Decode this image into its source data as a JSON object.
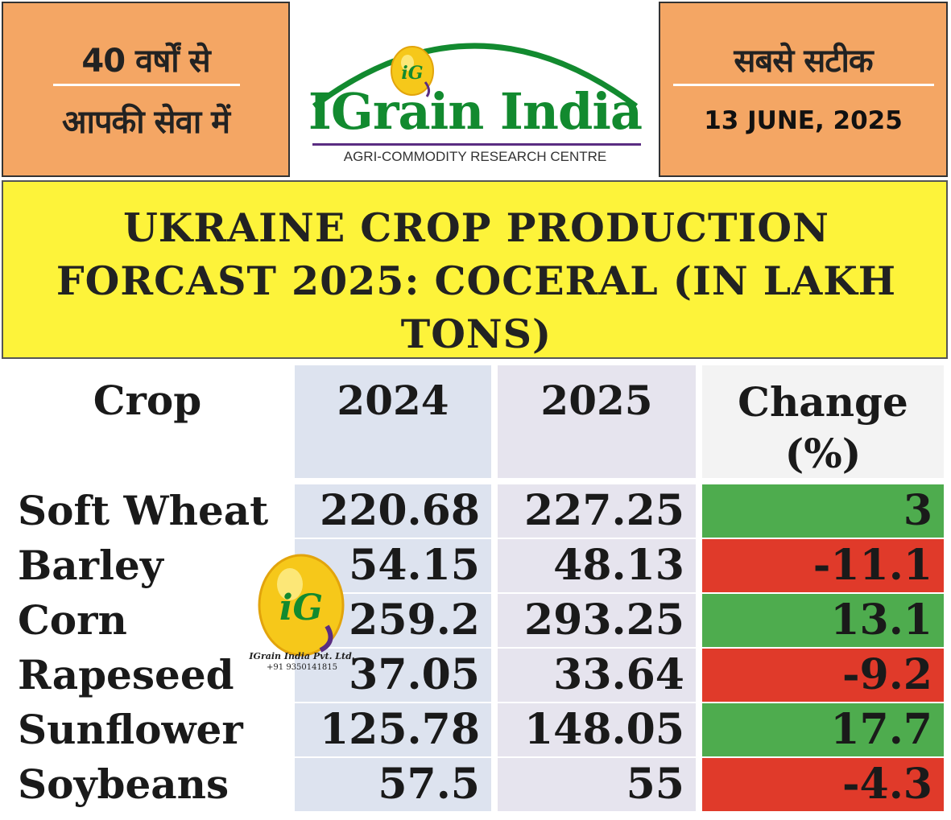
{
  "header": {
    "left_line1": "40 वर्षों से",
    "left_line2": "आपकी सेवा में",
    "right_line1": "सबसे सटीक",
    "date": "13 JUNE, 2025",
    "logo_name": "IGrain India",
    "logo_sub": "AGRI-COMMODITY RESEARCH CENTRE",
    "logo_mark": "iG"
  },
  "title": "UKRAINE CROP PRODUCTION FORCAST 2025: COCERAL (IN LAKH TONS)",
  "table": {
    "columns": [
      "Crop",
      "2024",
      "2025",
      "Change (%)"
    ],
    "rows": [
      {
        "crop": "Soft Wheat",
        "y2024": "220.68",
        "y2025": "227.25",
        "change": "3",
        "trend": "up"
      },
      {
        "crop": "Barley",
        "y2024": "54.15",
        "y2025": "48.13",
        "change": "-11.1",
        "trend": "down"
      },
      {
        "crop": "Corn",
        "y2024": "259.2",
        "y2025": "293.25",
        "change": "13.1",
        "trend": "up"
      },
      {
        "crop": "Rapeseed",
        "y2024": "37.05",
        "y2025": "33.64",
        "change": "-9.2",
        "trend": "down"
      },
      {
        "crop": "Sunflower",
        "y2024": "125.78",
        "y2025": "148.05",
        "change": "17.7",
        "trend": "up"
      },
      {
        "crop": "Soybeans",
        "y2024": "57.5",
        "y2025": "55",
        "change": "-4.3",
        "trend": "down"
      }
    ]
  },
  "watermark": {
    "mark": "iG",
    "company": "IGrain India Pvt. Ltd.",
    "phone": "+91 9350141815"
  },
  "colors": {
    "header_orange": "#f4a664",
    "banner_yellow": "#fdf33a",
    "logo_green": "#128a2f",
    "positive": "#4eac4e",
    "negative": "#e03a2a"
  }
}
